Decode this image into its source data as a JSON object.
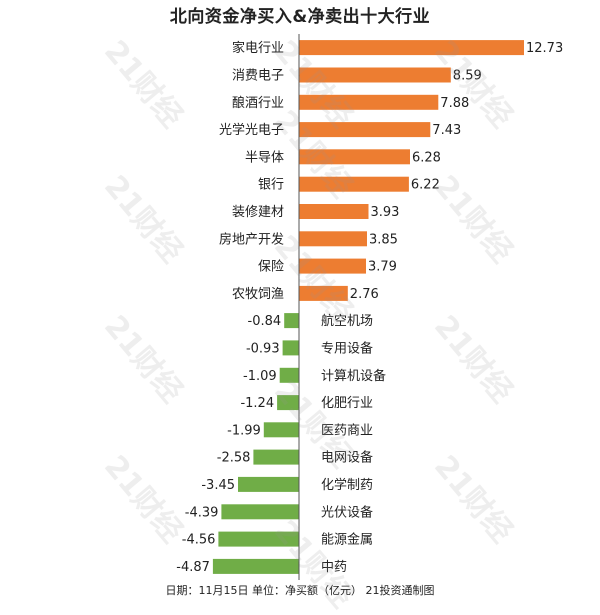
{
  "chart_data": {
    "type": "bar",
    "orientation": "horizontal",
    "title": "北向资金净买入&净卖出十大行业",
    "categories": [
      "家电行业",
      "消费电子",
      "酿酒行业",
      "光学光电子",
      "半导体",
      "银行",
      "装修建材",
      "房地产开发",
      "保险",
      "农牧饲渔",
      "航空机场",
      "专用设备",
      "计算机设备",
      "化肥行业",
      "医药商业",
      "电网设备",
      "化学制药",
      "光伏设备",
      "能源金属",
      "中药"
    ],
    "values": [
      12.73,
      8.59,
      7.88,
      7.43,
      6.28,
      6.22,
      3.93,
      3.85,
      3.79,
      2.76,
      -0.84,
      -0.93,
      -1.09,
      -1.24,
      -1.99,
      -2.58,
      -3.45,
      -4.39,
      -4.56,
      -4.87
    ],
    "value_labels": [
      "12.73",
      "8.59",
      "7.88",
      "7.43",
      "6.28",
      "6.22",
      "3.93",
      "3.85",
      "3.79",
      "2.76",
      "-0.84",
      "-0.93",
      "-1.09",
      "-1.24",
      "-1.99",
      "-2.58",
      "-3.45",
      "-4.39",
      "-4.56",
      "-4.87"
    ],
    "xlim": [
      -4.87,
      12.73
    ],
    "grid": false,
    "legend": "none",
    "colors": {
      "positive": "#ED7D31",
      "negative": "#70AD47",
      "axis": "#555555"
    }
  },
  "footer": "日期：11月15日 单位：净买额（亿元） 21投资通制图",
  "watermark": "21财经"
}
